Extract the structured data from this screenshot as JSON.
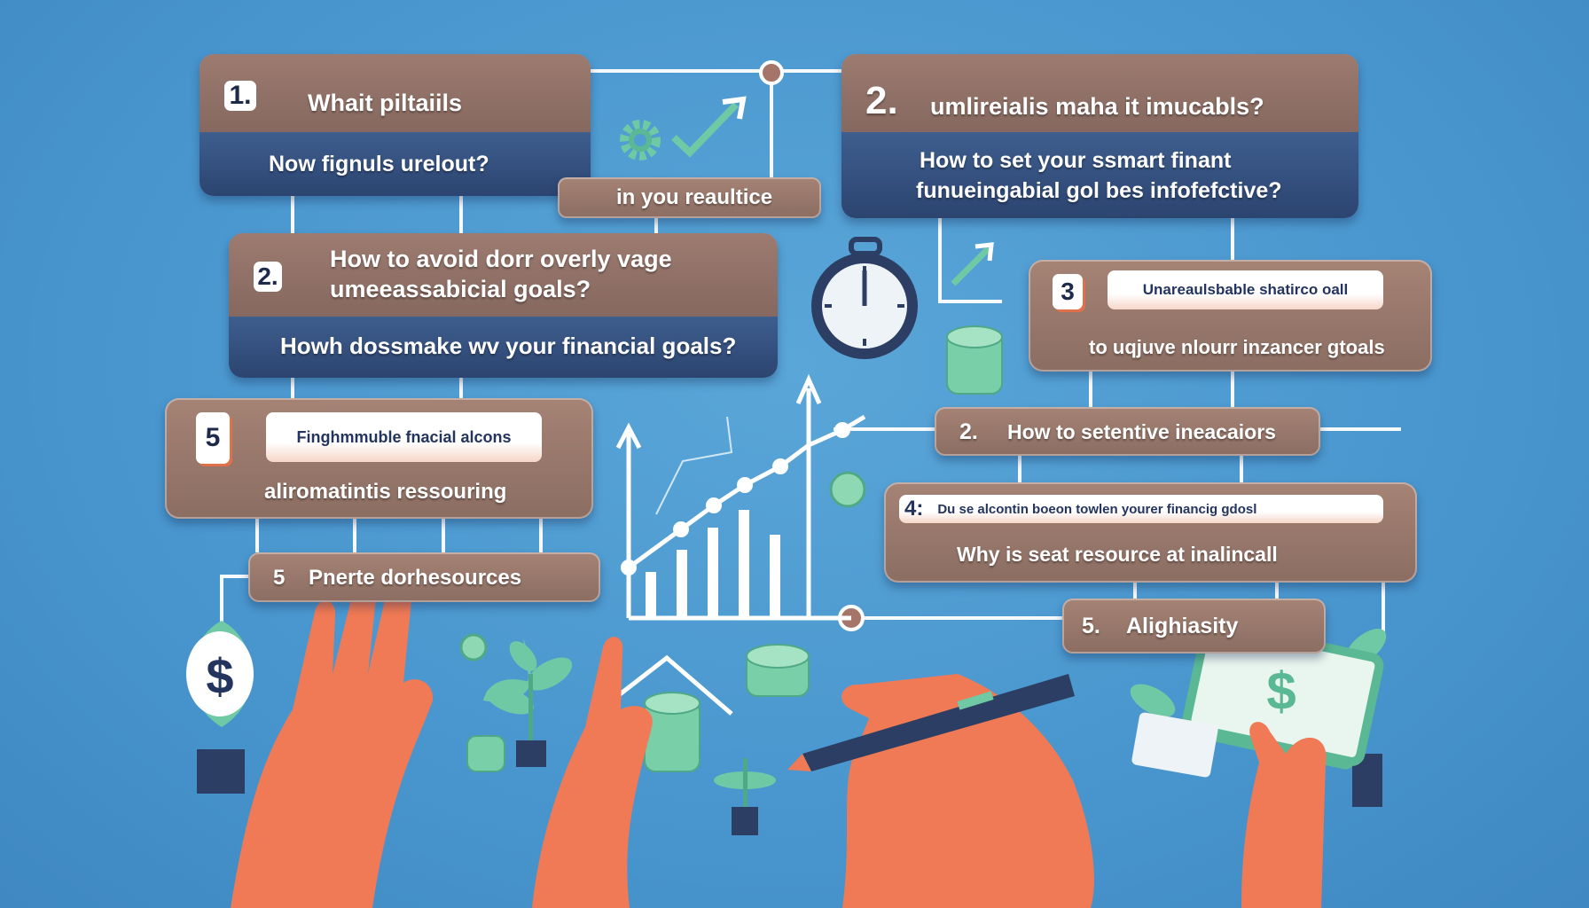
{
  "colors": {
    "background": "#4a97cf",
    "card_brown": "#96786b",
    "card_navy": "#33507e",
    "accent_green": "#6fc9a4",
    "hand": "#f07a55",
    "line": "#ffffff"
  },
  "cards": [
    {
      "number": "1.",
      "title": "Whait piltaiils",
      "subtitle": "Now fignuls urelout?"
    },
    {
      "text": "in you reaultice"
    },
    {
      "number": "2.",
      "title": "umlireialis maha it imucabls?",
      "subtitle_line1": "How to set your ssmart  finant",
      "subtitle_line2": "funueingabial gol  bes infofefctive?"
    },
    {
      "number": "2.",
      "title_line1": "How to  avoid dorr overly vage",
      "title_line2": "umeeassabicial goals?",
      "subtitle": "Howh dossmake wv your financial   goals?"
    },
    {
      "number": "3",
      "pill": "Unareaulsbable shatirco oall",
      "text": "to uqjuve nlourr inzancer gtoals"
    },
    {
      "number": "5",
      "pill": "Finghmmuble fnacial alcons",
      "text": "aliromatintis ressouring"
    },
    {
      "number": "5",
      "text": "Pnerte dorhesources"
    },
    {
      "number": "2.",
      "text": "How to setentive ineacaiors"
    },
    {
      "number": "4:",
      "pill": "Du se alcontin boeon towlen yourer financig gdosl",
      "text": "Why is seat resource at inalincall"
    },
    {
      "number": "5.",
      "text": "Alighiasity"
    }
  ],
  "icons": [
    "gear-icon",
    "checkmark-arrow-icon",
    "stopwatch-icon",
    "coin-stack-icon",
    "bar-chart-icon",
    "dollar-coin-icon",
    "plant-icon",
    "money-bills-icon",
    "pen-icon",
    "hand-icon"
  ]
}
